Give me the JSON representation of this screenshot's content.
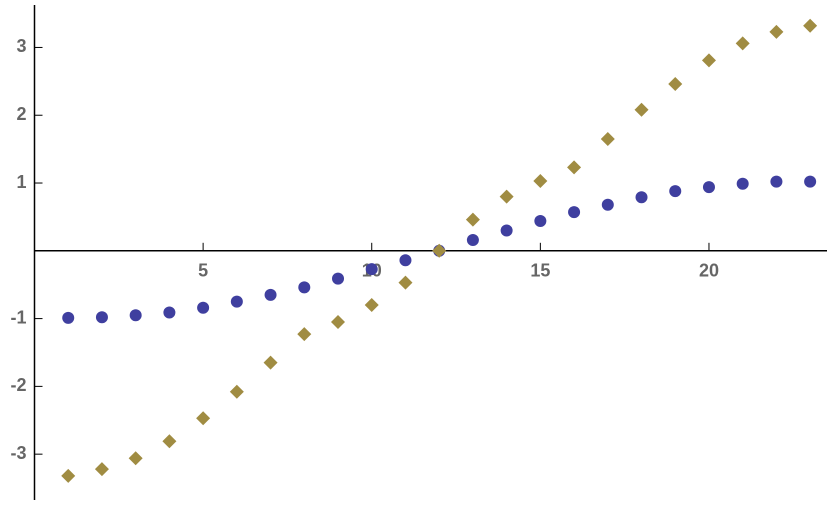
{
  "chart_data": {
    "type": "scatter",
    "x": [
      1,
      2,
      3,
      4,
      5,
      6,
      7,
      8,
      9,
      10,
      11,
      12,
      13,
      14,
      15,
      16,
      17,
      18,
      19,
      20,
      21,
      22,
      23
    ],
    "series": [
      {
        "color": "#3f3f9f",
        "marker": "circle",
        "values": [
          -0.99,
          -0.98,
          -0.95,
          -0.91,
          -0.84,
          -0.75,
          -0.65,
          -0.54,
          -0.41,
          -0.27,
          -0.14,
          0,
          0.16,
          0.3,
          0.44,
          0.57,
          0.68,
          0.79,
          0.88,
          0.94,
          0.99,
          1.02,
          1.02
        ]
      },
      {
        "color": "#a08c42",
        "marker": "diamond",
        "values": [
          -3.32,
          -3.22,
          -3.06,
          -2.81,
          -2.47,
          -2.08,
          -1.65,
          -1.23,
          -1.05,
          -0.8,
          -0.47,
          0,
          0.46,
          0.8,
          1.03,
          1.23,
          1.65,
          2.08,
          2.46,
          2.81,
          3.06,
          3.23,
          3.32
        ]
      }
    ],
    "xlim": [
      0,
      23.5
    ],
    "xticks": [
      5,
      10,
      15,
      20
    ],
    "ylim": [
      -3.75,
      3.7
    ],
    "yticks": [
      -3,
      -2,
      -1,
      1,
      2,
      3
    ]
  }
}
